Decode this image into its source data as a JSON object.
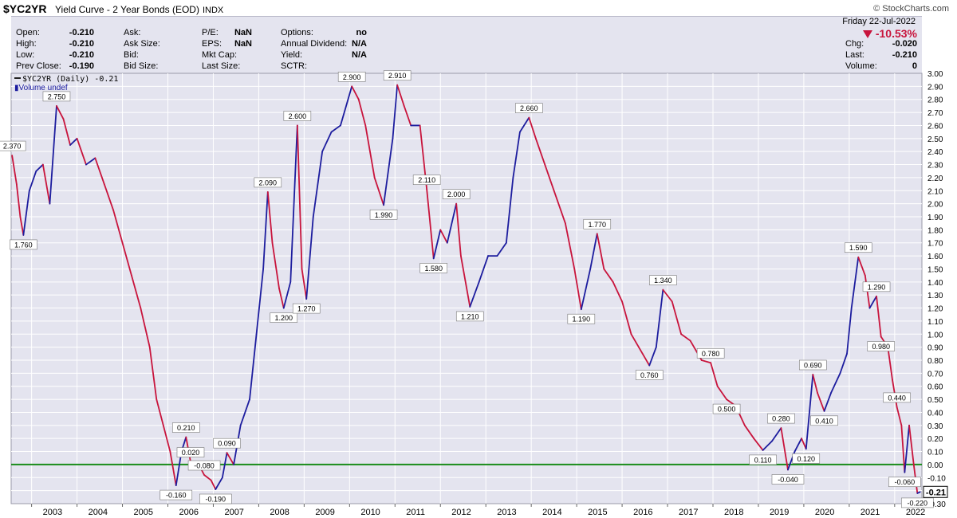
{
  "header": {
    "symbol": "$YC2YR",
    "title": "Yield Curve - 2 Year Bonds (EOD)",
    "exchange": "INDX",
    "brand": "© StockCharts.com"
  },
  "quote_panel": {
    "date": "Friday   22-Jul-2022",
    "change_percent": "-10.53%",
    "fields": [
      {
        "label": "Open:",
        "value": "-0.210"
      },
      {
        "label": "High:",
        "value": "-0.210"
      },
      {
        "label": "Low:",
        "value": "-0.210"
      },
      {
        "label": "Prev Close:",
        "value": "-0.190"
      },
      {
        "label": "Ask:",
        "value": ""
      },
      {
        "label": "Ask Size:",
        "value": ""
      },
      {
        "label": "Bid:",
        "value": ""
      },
      {
        "label": "Bid Size:",
        "value": ""
      },
      {
        "label": "P/E:",
        "value": "NaN"
      },
      {
        "label": "EPS:",
        "value": "NaN"
      },
      {
        "label": "Mkt Cap:",
        "value": ""
      },
      {
        "label": "Last Size:",
        "value": ""
      },
      {
        "label": "Options:",
        "value": "no"
      },
      {
        "label": "Annual Dividend:",
        "value": "N/A"
      },
      {
        "label": "Yield:",
        "value": "N/A"
      },
      {
        "label": "SCTR:",
        "value": ""
      },
      {
        "label": "Chg:",
        "value": "-0.020"
      },
      {
        "label": "Last:",
        "value": "-0.210"
      },
      {
        "label": "Volume:",
        "value": "0"
      }
    ]
  },
  "legend": {
    "series": "$YC2YR (Daily) -0.21",
    "volume": "Volume undef"
  },
  "colors": {
    "line_down": "#c8143c",
    "line_up": "#1c1c9e",
    "zero_line": "#1a8c1a",
    "plot_bg": "#e4e4ef",
    "grid": "#ffffff"
  },
  "chart_data": {
    "type": "line",
    "series_name": "$YC2YR (Daily)",
    "x_ticks": [
      "2003",
      "2004",
      "2005",
      "2006",
      "2007",
      "2008",
      "2009",
      "2010",
      "2011",
      "2012",
      "2013",
      "2014",
      "2015",
      "2016",
      "2017",
      "2018",
      "2019",
      "2020",
      "2021",
      "2022"
    ],
    "y_ticks": [
      "3.00",
      "2.90",
      "2.80",
      "2.70",
      "2.60",
      "2.50",
      "2.40",
      "2.30",
      "2.20",
      "2.10",
      "2.00",
      "1.90",
      "1.80",
      "1.70",
      "1.60",
      "1.50",
      "1.40",
      "1.30",
      "1.20",
      "1.10",
      "1.00",
      "0.90",
      "0.80",
      "0.70",
      "0.60",
      "0.50",
      "0.40",
      "0.30",
      "0.20",
      "0.10",
      "0.00",
      "-0.10",
      "-0.20",
      "-0.30"
    ],
    "ylim": [
      -0.3,
      3.0
    ],
    "xlim": [
      2002.55,
      2022.6
    ],
    "reference_line": 0.0,
    "last_value_label": "-0.21",
    "points": [
      [
        2002.57,
        2.37
      ],
      [
        2002.67,
        2.15
      ],
      [
        2002.75,
        1.9
      ],
      [
        2002.82,
        1.76
      ],
      [
        2002.95,
        2.1
      ],
      [
        2003.1,
        2.25
      ],
      [
        2003.25,
        2.3
      ],
      [
        2003.4,
        2.0
      ],
      [
        2003.55,
        2.75
      ],
      [
        2003.7,
        2.65
      ],
      [
        2003.85,
        2.45
      ],
      [
        2004.0,
        2.5
      ],
      [
        2004.2,
        2.3
      ],
      [
        2004.4,
        2.35
      ],
      [
        2004.6,
        2.15
      ],
      [
        2004.8,
        1.95
      ],
      [
        2005.0,
        1.7
      ],
      [
        2005.2,
        1.45
      ],
      [
        2005.4,
        1.2
      ],
      [
        2005.6,
        0.9
      ],
      [
        2005.75,
        0.5
      ],
      [
        2005.9,
        0.3
      ],
      [
        2006.05,
        0.1
      ],
      [
        2006.18,
        -0.16
      ],
      [
        2006.3,
        0.1
      ],
      [
        2006.4,
        0.21
      ],
      [
        2006.5,
        0.02
      ],
      [
        2006.65,
        0.02
      ],
      [
        2006.8,
        -0.08
      ],
      [
        2006.95,
        -0.12
      ],
      [
        2007.05,
        -0.19
      ],
      [
        2007.2,
        -0.1
      ],
      [
        2007.3,
        0.09
      ],
      [
        2007.45,
        0.0
      ],
      [
        2007.6,
        0.3
      ],
      [
        2007.8,
        0.5
      ],
      [
        2007.95,
        1.0
      ],
      [
        2008.1,
        1.5
      ],
      [
        2008.2,
        2.09
      ],
      [
        2008.3,
        1.7
      ],
      [
        2008.45,
        1.35
      ],
      [
        2008.55,
        1.2
      ],
      [
        2008.7,
        1.4
      ],
      [
        2008.85,
        2.6
      ],
      [
        2008.95,
        1.5
      ],
      [
        2009.05,
        1.27
      ],
      [
        2009.2,
        1.9
      ],
      [
        2009.4,
        2.4
      ],
      [
        2009.6,
        2.55
      ],
      [
        2009.8,
        2.6
      ],
      [
        2010.05,
        2.9
      ],
      [
        2010.2,
        2.8
      ],
      [
        2010.35,
        2.6
      ],
      [
        2010.55,
        2.2
      ],
      [
        2010.75,
        1.99
      ],
      [
        2010.95,
        2.5
      ],
      [
        2011.05,
        2.91
      ],
      [
        2011.2,
        2.75
      ],
      [
        2011.35,
        2.6
      ],
      [
        2011.55,
        2.6
      ],
      [
        2011.7,
        2.11
      ],
      [
        2011.85,
        1.58
      ],
      [
        2012.0,
        1.8
      ],
      [
        2012.15,
        1.7
      ],
      [
        2012.35,
        2.0
      ],
      [
        2012.45,
        1.6
      ],
      [
        2012.65,
        1.21
      ],
      [
        2012.85,
        1.4
      ],
      [
        2013.05,
        1.6
      ],
      [
        2013.25,
        1.6
      ],
      [
        2013.45,
        1.7
      ],
      [
        2013.6,
        2.2
      ],
      [
        2013.75,
        2.55
      ],
      [
        2013.95,
        2.66
      ],
      [
        2014.1,
        2.5
      ],
      [
        2014.3,
        2.3
      ],
      [
        2014.5,
        2.1
      ],
      [
        2014.75,
        1.85
      ],
      [
        2014.95,
        1.5
      ],
      [
        2015.1,
        1.19
      ],
      [
        2015.3,
        1.5
      ],
      [
        2015.45,
        1.77
      ],
      [
        2015.6,
        1.5
      ],
      [
        2015.8,
        1.4
      ],
      [
        2016.0,
        1.25
      ],
      [
        2016.2,
        1.0
      ],
      [
        2016.45,
        0.85
      ],
      [
        2016.6,
        0.76
      ],
      [
        2016.75,
        0.9
      ],
      [
        2016.9,
        1.34
      ],
      [
        2017.1,
        1.25
      ],
      [
        2017.3,
        1.0
      ],
      [
        2017.5,
        0.95
      ],
      [
        2017.75,
        0.8
      ],
      [
        2017.95,
        0.78
      ],
      [
        2018.1,
        0.6
      ],
      [
        2018.3,
        0.5
      ],
      [
        2018.5,
        0.45
      ],
      [
        2018.7,
        0.3
      ],
      [
        2018.9,
        0.2
      ],
      [
        2019.1,
        0.11
      ],
      [
        2019.3,
        0.18
      ],
      [
        2019.5,
        0.28
      ],
      [
        2019.65,
        -0.04
      ],
      [
        2019.8,
        0.1
      ],
      [
        2019.95,
        0.2
      ],
      [
        2020.05,
        0.12
      ],
      [
        2020.2,
        0.69
      ],
      [
        2020.3,
        0.55
      ],
      [
        2020.45,
        0.41
      ],
      [
        2020.6,
        0.55
      ],
      [
        2020.8,
        0.7
      ],
      [
        2020.95,
        0.85
      ],
      [
        2021.05,
        1.2
      ],
      [
        2021.2,
        1.59
      ],
      [
        2021.35,
        1.45
      ],
      [
        2021.45,
        1.2
      ],
      [
        2021.6,
        1.29
      ],
      [
        2021.7,
        0.98
      ],
      [
        2021.85,
        0.9
      ],
      [
        2021.95,
        0.65
      ],
      [
        2022.05,
        0.44
      ],
      [
        2022.15,
        0.3
      ],
      [
        2022.22,
        -0.06
      ],
      [
        2022.32,
        0.3
      ],
      [
        2022.42,
        0.0
      ],
      [
        2022.5,
        -0.22
      ],
      [
        2022.56,
        -0.21
      ]
    ],
    "annotations": [
      {
        "x": 2002.57,
        "y": 2.37,
        "label": "2.370",
        "pos": "above"
      },
      {
        "x": 2002.82,
        "y": 1.76,
        "label": "1.760",
        "pos": "below"
      },
      {
        "x": 2003.55,
        "y": 2.75,
        "label": "2.750",
        "pos": "above"
      },
      {
        "x": 2006.18,
        "y": -0.16,
        "label": "-0.160",
        "pos": "below"
      },
      {
        "x": 2006.4,
        "y": 0.21,
        "label": "0.210",
        "pos": "above"
      },
      {
        "x": 2006.5,
        "y": 0.02,
        "label": "0.020",
        "pos": "above"
      },
      {
        "x": 2006.8,
        "y": -0.08,
        "label": "-0.080",
        "pos": "above"
      },
      {
        "x": 2007.05,
        "y": -0.19,
        "label": "-0.190",
        "pos": "below"
      },
      {
        "x": 2007.3,
        "y": 0.09,
        "label": "0.090",
        "pos": "above"
      },
      {
        "x": 2008.2,
        "y": 2.09,
        "label": "2.090",
        "pos": "above"
      },
      {
        "x": 2008.55,
        "y": 1.2,
        "label": "1.200",
        "pos": "below"
      },
      {
        "x": 2008.85,
        "y": 2.6,
        "label": "2.600",
        "pos": "above"
      },
      {
        "x": 2009.05,
        "y": 1.27,
        "label": "1.270",
        "pos": "below"
      },
      {
        "x": 2010.05,
        "y": 2.9,
        "label": "2.900",
        "pos": "above"
      },
      {
        "x": 2010.75,
        "y": 1.99,
        "label": "1.990",
        "pos": "below"
      },
      {
        "x": 2011.05,
        "y": 2.91,
        "label": "2.910",
        "pos": "above"
      },
      {
        "x": 2011.7,
        "y": 2.11,
        "label": "2.110",
        "pos": "above"
      },
      {
        "x": 2011.85,
        "y": 1.58,
        "label": "1.580",
        "pos": "below"
      },
      {
        "x": 2012.35,
        "y": 2.0,
        "label": "2.000",
        "pos": "above"
      },
      {
        "x": 2012.65,
        "y": 1.21,
        "label": "1.210",
        "pos": "below"
      },
      {
        "x": 2013.95,
        "y": 2.66,
        "label": "2.660",
        "pos": "above"
      },
      {
        "x": 2015.1,
        "y": 1.19,
        "label": "1.190",
        "pos": "below"
      },
      {
        "x": 2015.45,
        "y": 1.77,
        "label": "1.770",
        "pos": "above"
      },
      {
        "x": 2016.6,
        "y": 0.76,
        "label": "0.760",
        "pos": "below"
      },
      {
        "x": 2016.9,
        "y": 1.34,
        "label": "1.340",
        "pos": "above"
      },
      {
        "x": 2017.95,
        "y": 0.78,
        "label": "0.780",
        "pos": "above"
      },
      {
        "x": 2018.3,
        "y": 0.5,
        "label": "0.500",
        "pos": "below"
      },
      {
        "x": 2019.1,
        "y": 0.11,
        "label": "0.110",
        "pos": "below"
      },
      {
        "x": 2019.5,
        "y": 0.28,
        "label": "0.280",
        "pos": "above"
      },
      {
        "x": 2019.65,
        "y": -0.04,
        "label": "-0.040",
        "pos": "below"
      },
      {
        "x": 2020.05,
        "y": 0.12,
        "label": "0.120",
        "pos": "below"
      },
      {
        "x": 2020.2,
        "y": 0.69,
        "label": "0.690",
        "pos": "above"
      },
      {
        "x": 2020.45,
        "y": 0.41,
        "label": "0.410",
        "pos": "below"
      },
      {
        "x": 2021.2,
        "y": 1.59,
        "label": "1.590",
        "pos": "above"
      },
      {
        "x": 2021.6,
        "y": 1.29,
        "label": "1.290",
        "pos": "above"
      },
      {
        "x": 2021.7,
        "y": 0.98,
        "label": "0.980",
        "pos": "below"
      },
      {
        "x": 2022.05,
        "y": 0.44,
        "label": "0.440",
        "pos": "above"
      },
      {
        "x": 2022.22,
        "y": -0.06,
        "label": "-0.060",
        "pos": "below"
      },
      {
        "x": 2022.5,
        "y": -0.22,
        "label": "-0.220",
        "pos": "below"
      }
    ]
  }
}
